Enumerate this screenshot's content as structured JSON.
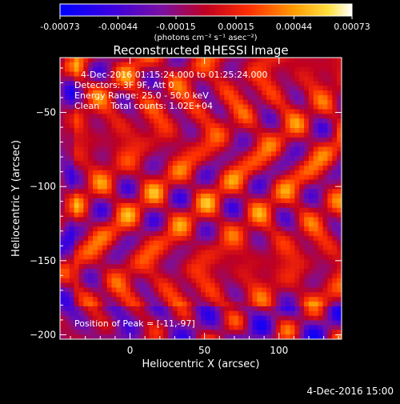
{
  "chart_data": {
    "type": "heatmap",
    "title": "Reconstructed RHESSI Image",
    "xlabel": "Heliocentric X (arcsec)",
    "ylabel": "Heliocentric Y (arcsec)",
    "xlim": [
      -47,
      142
    ],
    "ylim": [
      -203,
      -13
    ],
    "xticks": [
      0,
      50,
      100
    ],
    "yticks": [
      -50,
      -100,
      -150,
      -200
    ],
    "colorbar": {
      "min": -0.00073,
      "max": 0.00073,
      "ticks": [
        "-0.00073",
        "-0.00044",
        "-0.00015",
        "0.00015",
        "0.00044",
        "0.00073"
      ],
      "tick_values": [
        -0.00073,
        -0.00044,
        -0.00015,
        0.00015,
        0.00044,
        0.00073
      ],
      "unit_label": "(photons cm⁻² s⁻¹ asec⁻²)",
      "colormap": "blue-purple-red-orange-yellow-white"
    },
    "annotations": {
      "time_range": "4-Dec-2016 01:15:24.000 to 01:25:24.000",
      "detectors": "Detectors: 3F 9F, Att 0",
      "energy": "Energy Range: 25.0 - 50.0 keV",
      "clean_counts": "Clean    Total counts: 1.02E+04",
      "peak": "Position of Peak = [-11,-97]"
    },
    "peak": {
      "x": -11,
      "y": -97
    },
    "grid": false
  },
  "footer": {
    "timestamp": "4-Dec-2016 15:00"
  }
}
